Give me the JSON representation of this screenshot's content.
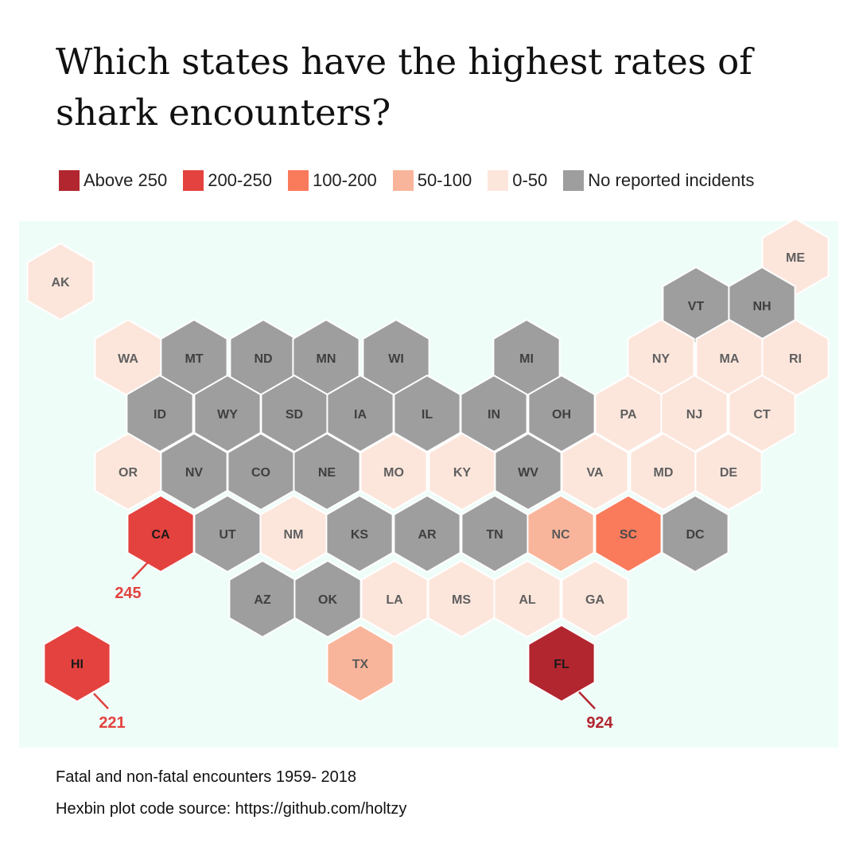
{
  "title": "Which states have the highest rates of shark encounters?",
  "legend": [
    {
      "label": "Above 250",
      "color": "#b2262f",
      "key": "above250"
    },
    {
      "label": "200-250",
      "color": "#e3423e",
      "key": "r200_250"
    },
    {
      "label": "100-200",
      "color": "#f97b5c",
      "key": "r100_200"
    },
    {
      "label": "50-100",
      "color": "#f9b59b",
      "key": "r50_100"
    },
    {
      "label": "0-50",
      "color": "#fce6dc",
      "key": "r0_50"
    },
    {
      "label": "No reported incidents",
      "color": "#9e9e9e",
      "key": "none"
    }
  ],
  "chart_data": {
    "type": "heatmap",
    "subtype": "hexbin-map",
    "title": "Which states have the highest rates of shark encounters?",
    "background_color": "#effdf9",
    "states": [
      {
        "abbr": "AK",
        "category": "r0_50"
      },
      {
        "abbr": "ME",
        "category": "r0_50"
      },
      {
        "abbr": "VT",
        "category": "none"
      },
      {
        "abbr": "NH",
        "category": "none"
      },
      {
        "abbr": "WA",
        "category": "r0_50"
      },
      {
        "abbr": "MT",
        "category": "none"
      },
      {
        "abbr": "ND",
        "category": "none"
      },
      {
        "abbr": "MN",
        "category": "none"
      },
      {
        "abbr": "WI",
        "category": "none"
      },
      {
        "abbr": "MI",
        "category": "none"
      },
      {
        "abbr": "NY",
        "category": "r0_50"
      },
      {
        "abbr": "MA",
        "category": "r0_50"
      },
      {
        "abbr": "RI",
        "category": "r0_50"
      },
      {
        "abbr": "ID",
        "category": "none"
      },
      {
        "abbr": "WY",
        "category": "none"
      },
      {
        "abbr": "SD",
        "category": "none"
      },
      {
        "abbr": "IA",
        "category": "none"
      },
      {
        "abbr": "IL",
        "category": "none"
      },
      {
        "abbr": "IN",
        "category": "none"
      },
      {
        "abbr": "OH",
        "category": "none"
      },
      {
        "abbr": "PA",
        "category": "r0_50"
      },
      {
        "abbr": "NJ",
        "category": "r0_50"
      },
      {
        "abbr": "CT",
        "category": "r0_50"
      },
      {
        "abbr": "OR",
        "category": "r0_50"
      },
      {
        "abbr": "NV",
        "category": "none"
      },
      {
        "abbr": "CO",
        "category": "none"
      },
      {
        "abbr": "NE",
        "category": "none"
      },
      {
        "abbr": "MO",
        "category": "r0_50"
      },
      {
        "abbr": "KY",
        "category": "r0_50"
      },
      {
        "abbr": "WV",
        "category": "none"
      },
      {
        "abbr": "VA",
        "category": "r0_50"
      },
      {
        "abbr": "MD",
        "category": "r0_50"
      },
      {
        "abbr": "DE",
        "category": "r0_50"
      },
      {
        "abbr": "CA",
        "category": "r200_250",
        "value": 245
      },
      {
        "abbr": "UT",
        "category": "none"
      },
      {
        "abbr": "NM",
        "category": "r0_50"
      },
      {
        "abbr": "KS",
        "category": "none"
      },
      {
        "abbr": "AR",
        "category": "none"
      },
      {
        "abbr": "TN",
        "category": "none"
      },
      {
        "abbr": "NC",
        "category": "r50_100"
      },
      {
        "abbr": "SC",
        "category": "r100_200"
      },
      {
        "abbr": "DC",
        "category": "none"
      },
      {
        "abbr": "AZ",
        "category": "none"
      },
      {
        "abbr": "OK",
        "category": "none"
      },
      {
        "abbr": "LA",
        "category": "r0_50"
      },
      {
        "abbr": "MS",
        "category": "r0_50"
      },
      {
        "abbr": "AL",
        "category": "r0_50"
      },
      {
        "abbr": "GA",
        "category": "r0_50"
      },
      {
        "abbr": "HI",
        "category": "r200_250",
        "value": 221
      },
      {
        "abbr": "TX",
        "category": "r50_100"
      },
      {
        "abbr": "FL",
        "category": "above250",
        "value": 924
      }
    ],
    "callouts": [
      {
        "state": "CA",
        "value": "245"
      },
      {
        "state": "HI",
        "value": "221"
      },
      {
        "state": "FL",
        "value": "924"
      }
    ]
  },
  "footnotes": [
    "Fatal and non-fatal encounters 1959- 2018",
    "Hexbin plot code source: https://github.com/holtzy"
  ]
}
